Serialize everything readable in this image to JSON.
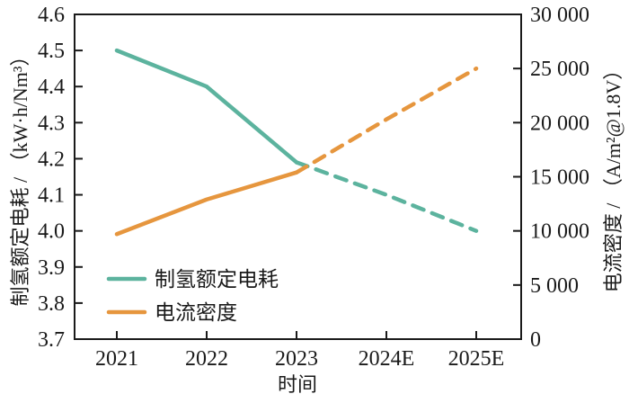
{
  "chart_data": {
    "type": "line",
    "title": "",
    "xlabel": "时间",
    "ylabel_left": "制氢额定电耗 / （kW·h/Nm³）",
    "ylabel_right": "电流密度 / （A/m²@1.8V）",
    "x_categories": [
      "2021",
      "2022",
      "2023",
      "2024E",
      "2025E"
    ],
    "y_left": {
      "min": 3.7,
      "max": 4.6,
      "ticks": [
        "4.6",
        "4.5",
        "4.4",
        "4.3",
        "4.2",
        "4.1",
        "4.0",
        "3.9",
        "3.8",
        "3.7"
      ]
    },
    "y_right": {
      "min": 0,
      "max": 30000,
      "ticks": [
        "30 000",
        "25 000",
        "20 000",
        "15 000",
        "10 000",
        "5 000",
        "0"
      ]
    },
    "series": [
      {
        "name": "制氢额定电耗",
        "axis": "left",
        "color": "#5cb39e",
        "values": [
          4.5,
          4.4,
          4.19,
          4.1,
          4.0
        ],
        "solid_until_index": 2
      },
      {
        "name": "电流密度",
        "axis": "right",
        "color": "#e6963e",
        "values": [
          9700,
          12900,
          15400,
          20300,
          25000
        ],
        "solid_until_index": 2
      }
    ],
    "legend": {
      "position": "inside-lower-left",
      "entries": [
        "制氢额定电耗",
        "电流密度"
      ]
    },
    "grid": false,
    "colors": {
      "text": "#1a1a1a",
      "axis": "#1a1a1a",
      "background": "#ffffff"
    }
  }
}
